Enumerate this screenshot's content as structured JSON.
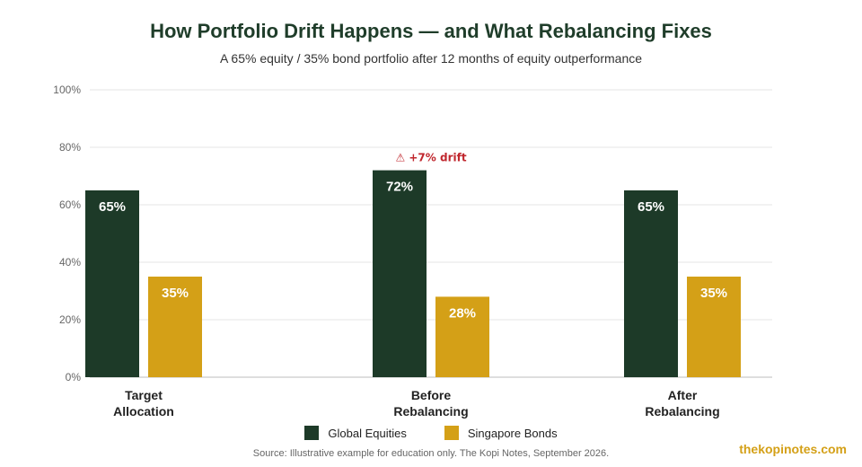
{
  "colors": {
    "equities": "#1d3a28",
    "bonds": "#d4a017",
    "drift_annotation": "#c0262d",
    "title": "#1f3d2a",
    "watermark": "#d4a017"
  },
  "header": {
    "title": "How Portfolio Drift Happens — and What Rebalancing Fixes",
    "subtitle": "A 65% equity / 35% bond portfolio after 12 months of equity outperformance"
  },
  "footer": {
    "source": "Source: Illustrative example for education only. The Kopi Notes, September 2026.",
    "watermark": "thekopinotes.com"
  },
  "chart_data": {
    "type": "bar",
    "title": "How Portfolio Drift Happens — and What Rebalancing Fixes",
    "subtitle": "A 65% equity / 35% bond portfolio after 12 months of equity outperformance",
    "categories": [
      [
        "Target",
        "Allocation"
      ],
      [
        "Before",
        "Rebalancing"
      ],
      [
        "After",
        "Rebalancing"
      ]
    ],
    "series": [
      {
        "name": "Global Equities",
        "values": [
          65,
          72,
          65
        ],
        "labels": [
          "65%",
          "72%",
          "65%"
        ]
      },
      {
        "name": "Singapore Bonds",
        "values": [
          35,
          28,
          35
        ],
        "labels": [
          "35%",
          "28%",
          "35%"
        ]
      }
    ],
    "ylim": [
      0,
      100
    ],
    "yticks": [
      0,
      20,
      40,
      60,
      80,
      100
    ],
    "ytick_labels": [
      "0%",
      "20%",
      "40%",
      "60%",
      "80%",
      "100%"
    ],
    "grid": true,
    "legend_position": "bottom",
    "annotations": [
      {
        "category_index": 1,
        "series_index": 0,
        "text": "⚠ +7% drift"
      }
    ]
  }
}
